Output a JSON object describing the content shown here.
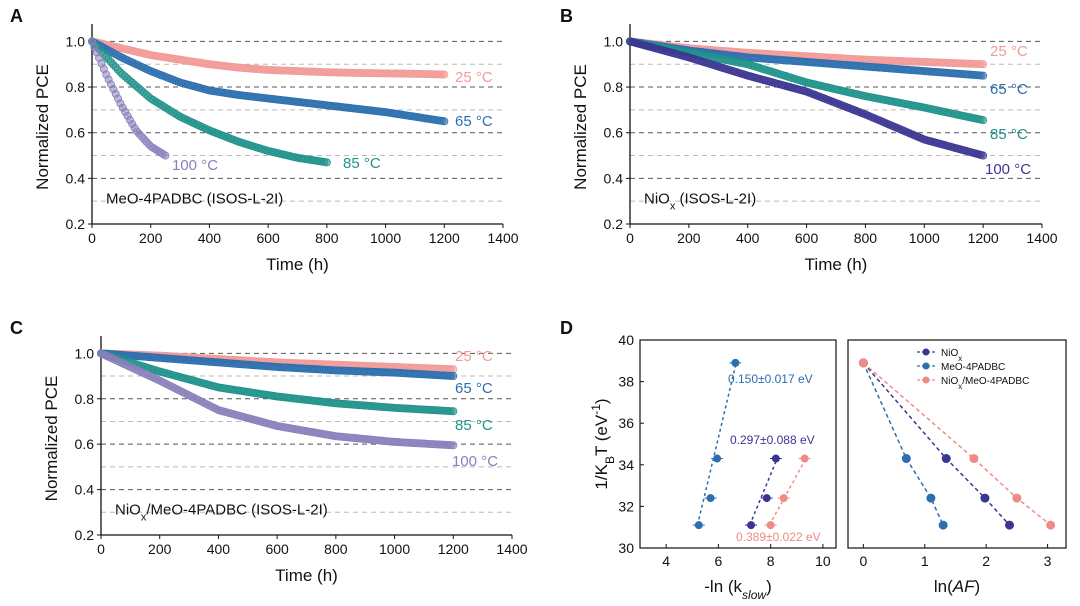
{
  "colors": {
    "c25": "#f29a98",
    "c65": "#2c6fae",
    "c85": "#20938a",
    "c100": "#8a80bb",
    "c100_dark": "#3b3691",
    "niox": "#3b3691",
    "meo": "#2c6fae",
    "combo": "#f08a86"
  },
  "chart_data": [
    {
      "panel": "A",
      "type": "scatter",
      "inset": "MeO-4PADBC (ISOS-L-2I)",
      "xlabel": "Time (h)",
      "ylabel": "Normalized PCE",
      "xlim": [
        0,
        1400
      ],
      "ylim": [
        0.2,
        1.05
      ],
      "xticks": [
        0,
        200,
        400,
        600,
        800,
        1000,
        1200,
        1400
      ],
      "yticks": [
        0.2,
        0.4,
        0.6,
        0.8,
        1.0
      ],
      "grid": "dashed horizontal",
      "series": [
        {
          "name": "25 °C",
          "x": [
            0,
            100,
            200,
            300,
            400,
            500,
            600,
            700,
            800,
            900,
            1000,
            1100,
            1200
          ],
          "y": [
            1.0,
            0.97,
            0.94,
            0.92,
            0.9,
            0.885,
            0.875,
            0.87,
            0.865,
            0.862,
            0.86,
            0.858,
            0.855
          ]
        },
        {
          "name": "65 °C",
          "x": [
            0,
            100,
            200,
            300,
            400,
            500,
            600,
            700,
            800,
            900,
            1000,
            1100,
            1200
          ],
          "y": [
            1.0,
            0.93,
            0.87,
            0.82,
            0.785,
            0.765,
            0.75,
            0.735,
            0.72,
            0.705,
            0.69,
            0.67,
            0.65
          ]
        },
        {
          "name": "85 °C",
          "x": [
            0,
            100,
            200,
            300,
            400,
            500,
            600,
            700,
            800
          ],
          "y": [
            1.0,
            0.86,
            0.75,
            0.67,
            0.61,
            0.56,
            0.52,
            0.49,
            0.47
          ]
        },
        {
          "name": "100 °C",
          "x": [
            0,
            50,
            100,
            150,
            200,
            250
          ],
          "y": [
            1.0,
            0.85,
            0.72,
            0.61,
            0.54,
            0.5
          ]
        }
      ]
    },
    {
      "panel": "B",
      "type": "scatter",
      "inset": "NiO",
      "inset_sub": "x",
      "inset_rest": " (ISOS-L-2I)",
      "xlabel": "Time (h)",
      "ylabel": "Normalized PCE",
      "xlim": [
        0,
        1400
      ],
      "ylim": [
        0.2,
        1.05
      ],
      "xticks": [
        0,
        200,
        400,
        600,
        800,
        1000,
        1200,
        1400
      ],
      "yticks": [
        0.2,
        0.4,
        0.6,
        0.8,
        1.0
      ],
      "grid": "dashed horizontal",
      "series": [
        {
          "name": "25 °C",
          "x": [
            0,
            200,
            400,
            600,
            800,
            1000,
            1200
          ],
          "y": [
            1.0,
            0.97,
            0.95,
            0.935,
            0.92,
            0.91,
            0.9
          ]
        },
        {
          "name": "65 °C",
          "x": [
            0,
            200,
            400,
            600,
            800,
            1000,
            1200
          ],
          "y": [
            1.0,
            0.96,
            0.93,
            0.91,
            0.89,
            0.87,
            0.85
          ]
        },
        {
          "name": "85 °C",
          "x": [
            0,
            200,
            400,
            600,
            800,
            1000,
            1200
          ],
          "y": [
            1.0,
            0.95,
            0.9,
            0.82,
            0.76,
            0.71,
            0.655
          ]
        },
        {
          "name": "100 °C",
          "x": [
            0,
            200,
            400,
            600,
            800,
            1000,
            1200
          ],
          "y": [
            1.0,
            0.93,
            0.85,
            0.78,
            0.68,
            0.57,
            0.5
          ]
        }
      ]
    },
    {
      "panel": "C",
      "type": "scatter",
      "inset": "NiO",
      "inset_sub": "x",
      "inset_rest": "/MeO-4PADBC (ISOS-L-2I)",
      "xlabel": "Time (h)",
      "ylabel": "Normalized PCE",
      "xlim": [
        0,
        1400
      ],
      "ylim": [
        0.2,
        1.05
      ],
      "xticks": [
        0,
        200,
        400,
        600,
        800,
        1000,
        1200,
        1400
      ],
      "yticks": [
        0.2,
        0.4,
        0.6,
        0.8,
        1.0
      ],
      "grid": "dashed horizontal",
      "series": [
        {
          "name": "25 °C",
          "x": [
            0,
            200,
            400,
            600,
            800,
            1000,
            1200
          ],
          "y": [
            1.0,
            0.99,
            0.975,
            0.96,
            0.95,
            0.94,
            0.93
          ]
        },
        {
          "name": "65 °C",
          "x": [
            0,
            200,
            400,
            600,
            800,
            1000,
            1200
          ],
          "y": [
            1.0,
            0.98,
            0.96,
            0.94,
            0.925,
            0.915,
            0.9
          ]
        },
        {
          "name": "85 °C",
          "x": [
            0,
            200,
            400,
            600,
            800,
            1000,
            1200
          ],
          "y": [
            1.0,
            0.92,
            0.85,
            0.81,
            0.78,
            0.76,
            0.745
          ]
        },
        {
          "name": "100 °C",
          "x": [
            0,
            200,
            400,
            600,
            800,
            1000,
            1200
          ],
          "y": [
            1.0,
            0.88,
            0.75,
            0.68,
            0.635,
            0.61,
            0.595
          ]
        }
      ]
    },
    {
      "panel": "D",
      "subpanel": "left",
      "type": "scatter",
      "xlabel": "-ln (k",
      "xlabel_sub": "slow",
      "xlabel_end": ")",
      "ylabel": "1/K",
      "ylabel_sub": "B",
      "ylabel_end": "T (eV",
      "ylabel_sup": "-1",
      "ylabel_close": ")",
      "xlim": [
        3,
        10.5
      ],
      "ylim": [
        30,
        40
      ],
      "xticks": [
        4,
        6,
        8,
        10
      ],
      "yticks": [
        30,
        32,
        34,
        36,
        38,
        40
      ],
      "series": [
        {
          "name": "MeO-4PADBC",
          "x": [
            5.25,
            5.7,
            5.95,
            6.65
          ],
          "y": [
            31.1,
            32.4,
            34.3,
            38.9
          ],
          "fit": [
            [
              5.2,
              31.1
            ],
            [
              6.7,
              39.0
            ]
          ],
          "annotation": "0.150±0.017 eV"
        },
        {
          "name": "NiOx",
          "x": [
            7.25,
            7.85,
            8.2
          ],
          "y": [
            31.1,
            32.4,
            34.3
          ],
          "fit": [
            [
              7.2,
              31.1
            ],
            [
              8.25,
              34.3
            ]
          ],
          "annotation": "0.297±0.088 eV"
        },
        {
          "name": "NiOx/MeO-4PADBC",
          "x": [
            8.0,
            8.5,
            9.3
          ],
          "y": [
            31.1,
            32.4,
            34.3
          ],
          "fit": [
            [
              7.95,
              31.1
            ],
            [
              9.35,
              34.3
            ]
          ],
          "annotation": "0.389±0.022 eV"
        }
      ]
    },
    {
      "panel": "D",
      "subpanel": "right",
      "type": "line",
      "xlabel": "ln(",
      "xlabel_italic": "AF",
      "xlabel_end": ")",
      "xlim": [
        -0.25,
        3.3
      ],
      "ylim": [
        30,
        40
      ],
      "xticks": [
        0,
        1,
        2,
        3
      ],
      "series": [
        {
          "name": "NiO",
          "name_sub": "x",
          "x": [
            0,
            1.35,
            1.98,
            2.38
          ],
          "y": [
            38.9,
            34.3,
            32.4,
            31.1
          ]
        },
        {
          "name": "MeO-4PADBC",
          "x": [
            0,
            0.7,
            1.1,
            1.3
          ],
          "y": [
            38.9,
            34.3,
            32.4,
            31.1
          ]
        },
        {
          "name": "NiO",
          "name_sub": "x",
          "name_rest": "/MeO-4PADBC",
          "x": [
            0,
            1.8,
            2.5,
            3.05
          ],
          "y": [
            38.9,
            34.3,
            32.4,
            31.1
          ]
        }
      ],
      "legend": "top-right"
    }
  ],
  "labels": {
    "A": "A",
    "B": "B",
    "C": "C",
    "D": "D",
    "t25": "25 °C",
    "t65": "65 °C",
    "t85": "85 °C",
    "t100": "100 °C"
  }
}
